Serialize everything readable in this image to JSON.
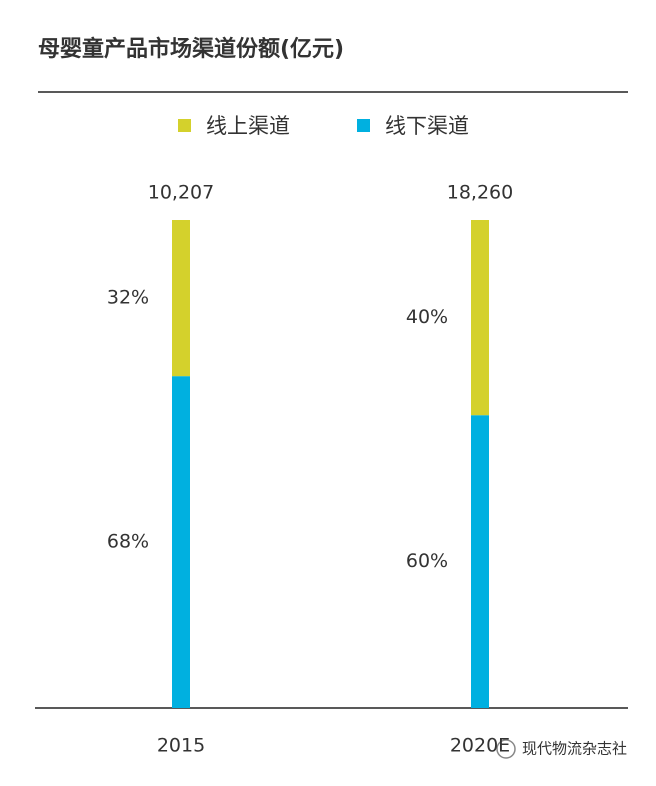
{
  "chart_data": {
    "type": "stacked_bar_100",
    "title": "母婴童产品市场渠道份额(亿元)",
    "categories": [
      "2015",
      "2020E"
    ],
    "series": [
      {
        "name": "线上渠道",
        "color": "#d4d12c",
        "values": [
          32,
          40
        ],
        "value_labels": [
          "32%",
          "40%"
        ]
      },
      {
        "name": "线下渠道",
        "color": "#00b0e0",
        "values": [
          68,
          60
        ],
        "value_labels": [
          "68%",
          "60%"
        ]
      }
    ],
    "totals": [
      10207,
      18260
    ],
    "total_labels": [
      "10,207",
      "18,260"
    ],
    "watermark": "现代物流杂志社"
  }
}
